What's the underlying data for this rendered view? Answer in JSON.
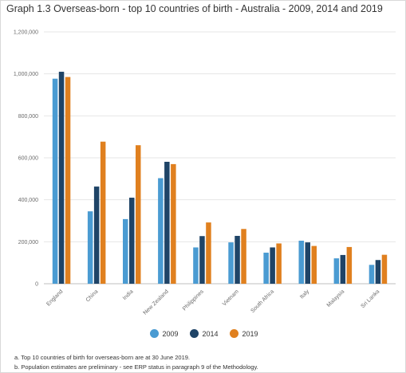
{
  "chart_data": {
    "type": "bar",
    "title": "Graph 1.3 Overseas-born - top 10 countries of birth - Australia - 2009, 2014 and 2019",
    "categories": [
      "England",
      "China",
      "India",
      "New Zealand",
      "Philippines",
      "Vietnam",
      "South Africa",
      "Italy",
      "Malaysia",
      "Sri Lanka"
    ],
    "series": [
      {
        "name": "2009",
        "color": "#4a9bd2",
        "values": [
          977000,
          345000,
          308000,
          503000,
          173000,
          197000,
          148000,
          205000,
          121000,
          90000
        ]
      },
      {
        "name": "2014",
        "color": "#1f4467",
        "values": [
          1010000,
          463000,
          410000,
          581000,
          227000,
          228000,
          173000,
          197000,
          137000,
          113000
        ]
      },
      {
        "name": "2019",
        "color": "#e0801f",
        "values": [
          985000,
          677000,
          660000,
          570000,
          292000,
          261000,
          192000,
          180000,
          175000,
          138000
        ]
      }
    ],
    "ylim": [
      0,
      1200000
    ],
    "yticks": [
      0,
      200000,
      400000,
      600000,
      800000,
      1000000,
      1200000
    ],
    "ytick_labels": [
      "0",
      "200,000",
      "400,000",
      "600,000",
      "800,000",
      "1,000,000",
      "1,200,000"
    ],
    "xlabel": "",
    "ylabel": "",
    "grid": true,
    "legend_position": "bottom"
  },
  "notes": [
    "a. Top 10 countries of birth for overseas-born are at 30 June 2019.",
    "b. Population estimates are preliminary - see ERP status in paragraph 9 of the Methodology."
  ]
}
